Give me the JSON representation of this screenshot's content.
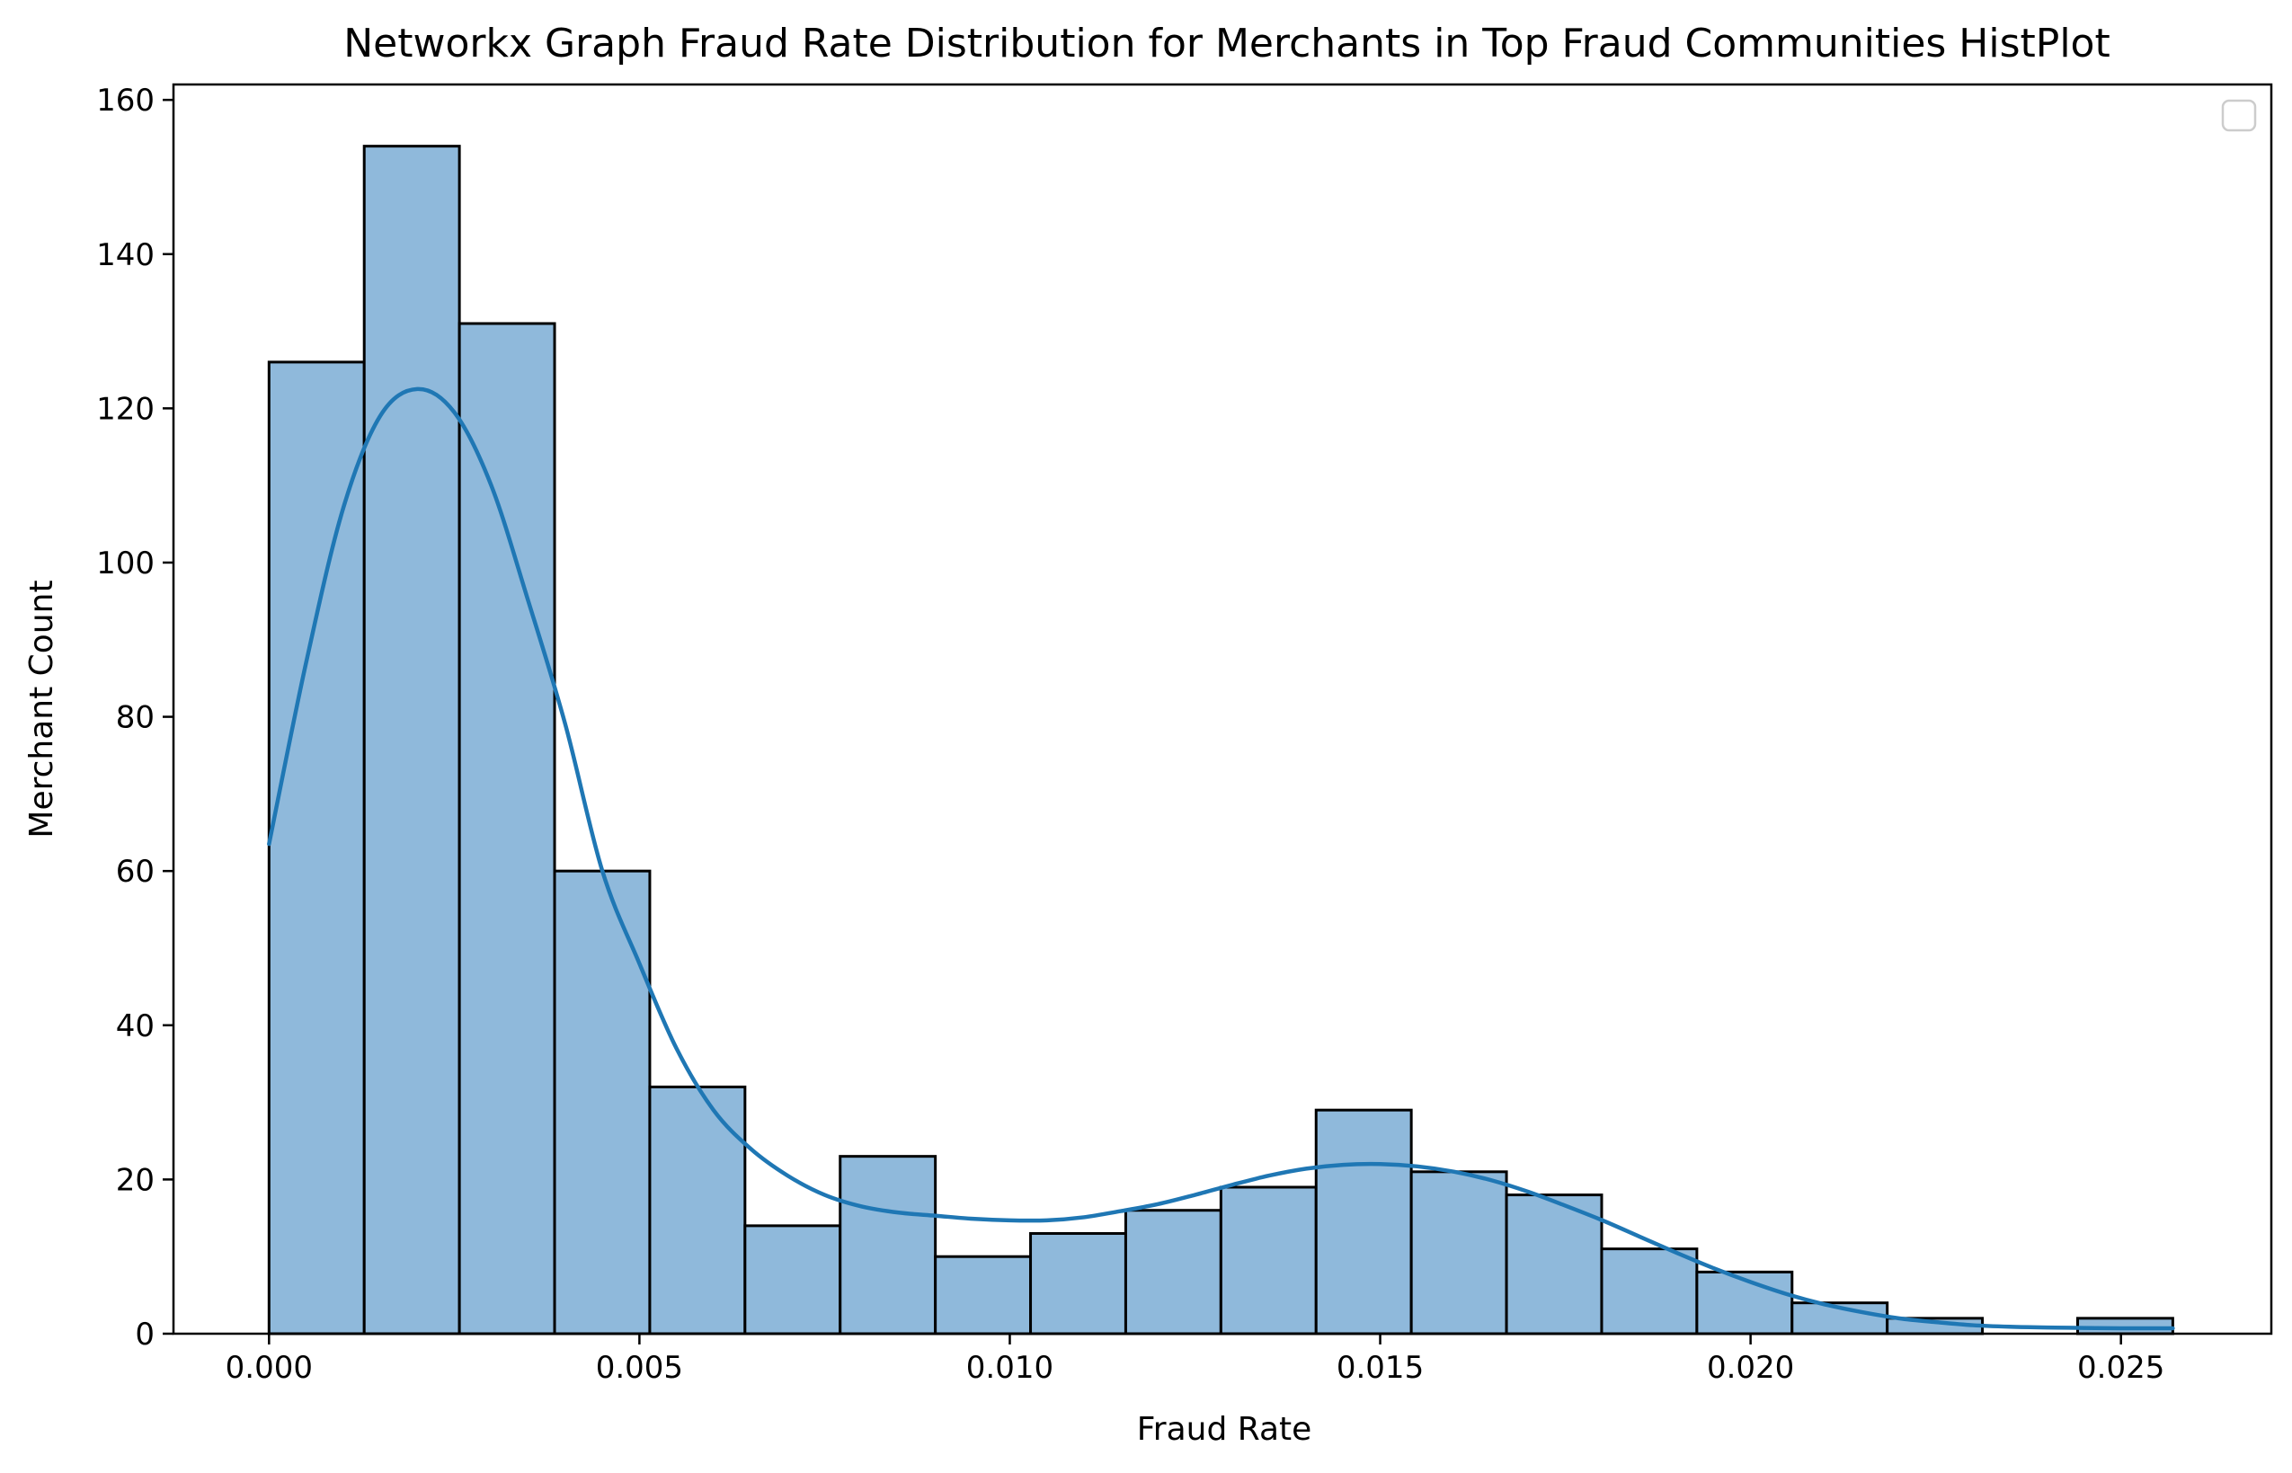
{
  "chart_data": {
    "type": "bar",
    "title": "Networkx Graph Fraud Rate Distribution for Merchants in Top Fraud Communities HistPlot",
    "xlabel": "Fraud Rate",
    "ylabel": "Merchant Count",
    "xlim": [
      -0.00129,
      0.02703
    ],
    "ylim": [
      0,
      162
    ],
    "xticks": [
      0.0,
      0.005,
      0.01,
      0.015,
      0.02,
      0.025
    ],
    "xtick_labels": [
      "0.000",
      "0.005",
      "0.010",
      "0.015",
      "0.020",
      "0.025"
    ],
    "yticks": [
      0,
      20,
      40,
      60,
      80,
      100,
      120,
      140,
      160
    ],
    "ytick_labels": [
      "0",
      "20",
      "40",
      "60",
      "80",
      "100",
      "120",
      "140",
      "160"
    ],
    "bin_edges": [
      0.0,
      0.001285,
      0.00257,
      0.003855,
      0.00514,
      0.006425,
      0.00771,
      0.008995,
      0.01028,
      0.011565,
      0.01285,
      0.014135,
      0.01542,
      0.016705,
      0.01799,
      0.019275,
      0.02056,
      0.021845,
      0.02313,
      0.024415,
      0.0257
    ],
    "counts": [
      126,
      154,
      131,
      60,
      32,
      14,
      23,
      10,
      13,
      16,
      19,
      29,
      21,
      18,
      11,
      8,
      4,
      2,
      0,
      2
    ],
    "kde": {
      "x": [
        0.0,
        0.0005,
        0.001,
        0.0015,
        0.002,
        0.0025,
        0.003,
        0.0035,
        0.004,
        0.0045,
        0.005,
        0.0055,
        0.006,
        0.0065,
        0.007,
        0.0075,
        0.008,
        0.0085,
        0.009,
        0.0095,
        0.01,
        0.0105,
        0.011,
        0.0115,
        0.012,
        0.0125,
        0.013,
        0.0135,
        0.014,
        0.0145,
        0.015,
        0.0155,
        0.016,
        0.0165,
        0.017,
        0.0175,
        0.018,
        0.0185,
        0.019,
        0.0195,
        0.02,
        0.0205,
        0.021,
        0.0215,
        0.022,
        0.0225,
        0.023,
        0.0235,
        0.024,
        0.0245,
        0.025,
        0.0257
      ],
      "y": [
        63.5,
        87,
        107,
        119,
        122.5,
        119.5,
        110,
        95,
        79,
        60,
        48,
        37,
        29,
        24,
        20.5,
        18,
        16.5,
        15.7,
        15.3,
        14.9,
        14.7,
        14.7,
        15.1,
        15.9,
        16.8,
        18,
        19.3,
        20.5,
        21.4,
        21.9,
        22,
        21.7,
        21,
        19.9,
        18.4,
        16.6,
        14.7,
        12.6,
        10.5,
        8.5,
        6.7,
        5.1,
        3.8,
        2.8,
        2,
        1.5,
        1.1,
        0.9,
        0.8,
        0.75,
        0.7,
        0.7
      ]
    },
    "bar_fill": "#8fb9db",
    "bar_edge": "#000000",
    "line_color": "#1f77b4",
    "legend": {
      "position": "top-right",
      "entries": []
    },
    "grid": false
  }
}
